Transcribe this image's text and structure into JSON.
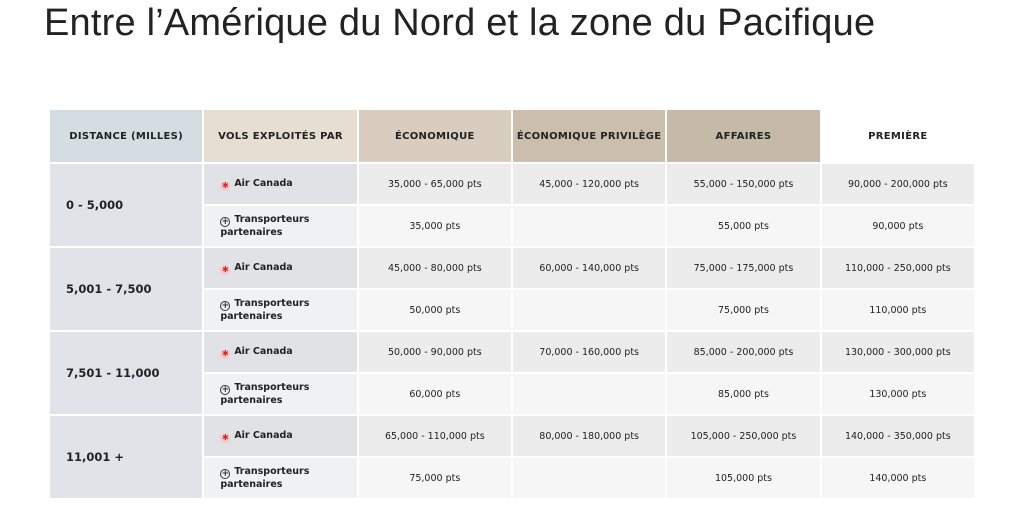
{
  "title": "Entre l’Amérique du Nord et la zone du Pacifique",
  "headers": [
    "DISTANCE (MILLES)",
    "VOLS EXPLOITÉS PAR",
    "ÉCONOMIQUE",
    "ÉCONOMIQUE PRIVILÈGE",
    "AFFAIRES",
    "PREMIÈRE"
  ],
  "operators": {
    "ac": "Air Canada",
    "partner": "Transporteurs partenaires"
  },
  "rows": [
    {
      "distance": "0 - 5,000",
      "ac": [
        "35,000 - 65,000 pts",
        "45,000 - 120,000 pts",
        "55,000 - 150,000 pts",
        "90,000 - 200,000 pts"
      ],
      "partner": [
        "35,000 pts",
        "",
        "55,000 pts",
        "90,000 pts"
      ]
    },
    {
      "distance": "5,001 - 7,500",
      "ac": [
        "45,000 - 80,000 pts",
        "60,000 - 140,000 pts",
        "75,000 - 175,000 pts",
        "110,000 - 250,000 pts"
      ],
      "partner": [
        "50,000 pts",
        "",
        "75,000 pts",
        "110,000 pts"
      ]
    },
    {
      "distance": "7,501 - 11,000",
      "ac": [
        "50,000 - 90,000 pts",
        "70,000 - 160,000 pts",
        "85,000 - 200,000 pts",
        "130,000 - 300,000 pts"
      ],
      "partner": [
        "60,000 pts",
        "",
        "85,000 pts",
        "130,000 pts"
      ]
    },
    {
      "distance": "11,001 +",
      "ac": [
        "65,000 - 110,000 pts",
        "80,000 - 180,000 pts",
        "105,000 - 250,000 pts",
        "140,000 - 350,000 pts"
      ],
      "partner": [
        "75,000 pts",
        "",
        "105,000 pts",
        "140,000 pts"
      ]
    }
  ],
  "icons": {
    "ac": "maple-leaf-icon",
    "partner": "star-alliance-icon"
  },
  "colors": {
    "air_canada_red": "#d22222",
    "economique": "#e7ded2",
    "affaires": "#cbbeac"
  }
}
